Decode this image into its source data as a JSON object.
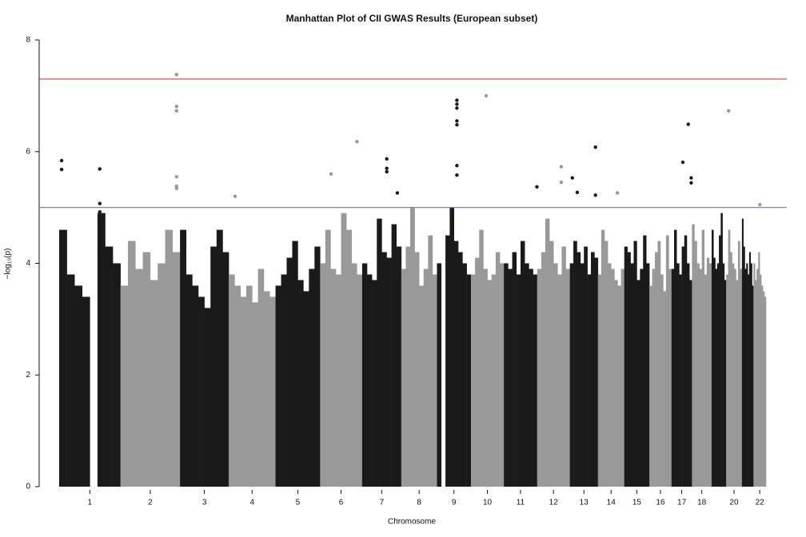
{
  "chart_data": {
    "type": "manhattan",
    "title": "Manhattan Plot of CII GWAS Results (European subset)",
    "x_label": "Chromosome",
    "y_label": "−log₁₀(p)",
    "ylim": [
      0,
      8
    ],
    "yticks": [
      0,
      2,
      4,
      6,
      8
    ],
    "thresholds": [
      {
        "value": 7.3,
        "color": "#e03a3a"
      },
      {
        "value": 5,
        "color": "#7b7fd6"
      }
    ],
    "chromosomes": [
      {
        "label": "1",
        "length": 249,
        "color": "#1a1a1a",
        "profile": [
          4.6,
          3.8,
          3.6,
          3.4,
          null,
          4.9,
          4.3,
          4.0
        ],
        "hits": {
          "x": [
            10,
            10,
            165,
            165,
            165
          ],
          "y": [
            5.84,
            5.68,
            5.69,
            5.07,
            4.92
          ]
        }
      },
      {
        "label": "2",
        "length": 242,
        "color": "#999999",
        "profile": [
          3.6,
          4.4,
          3.9,
          4.2,
          3.7,
          4.0,
          4.6,
          4.2
        ],
        "hits": {
          "x": [
            228,
            228,
            228,
            228,
            228,
            228
          ],
          "y": [
            7.38,
            6.81,
            6.73,
            5.55,
            5.38,
            5.34
          ]
        }
      },
      {
        "label": "3",
        "length": 198,
        "color": "#1a1a1a",
        "profile": [
          4.6,
          3.8,
          3.6,
          3.4,
          3.2,
          4.3,
          4.6,
          4.2
        ],
        "hits": {
          "x": [],
          "y": []
        }
      },
      {
        "label": "4",
        "length": 190,
        "color": "#999999",
        "profile": [
          3.8,
          3.6,
          3.4,
          3.6,
          3.3,
          3.9,
          3.5,
          3.4
        ],
        "hits": {
          "x": [
            26
          ],
          "y": [
            5.2
          ]
        }
      },
      {
        "label": "5",
        "length": 181,
        "color": "#1a1a1a",
        "profile": [
          3.6,
          3.8,
          4.1,
          4.4,
          3.7,
          3.5,
          3.9,
          4.3
        ],
        "hits": {
          "x": [],
          "y": []
        }
      },
      {
        "label": "6",
        "length": 171,
        "color": "#999999",
        "profile": [
          4.0,
          4.6,
          3.9,
          3.8,
          4.9,
          4.6,
          4.0,
          3.8
        ],
        "hits": {
          "x": [
            45,
            150
          ],
          "y": [
            5.6,
            6.18
          ]
        }
      },
      {
        "label": "7",
        "length": 159,
        "color": "#1a1a1a",
        "profile": [
          4.0,
          3.8,
          3.7,
          4.8,
          4.2,
          4.1,
          4.7,
          4.3
        ],
        "hits": {
          "x": [
            100,
            100,
            100,
            143
          ],
          "y": [
            5.87,
            5.7,
            5.64,
            5.26
          ]
        }
      },
      {
        "label": "8",
        "length": 145,
        "color": "#999999",
        "profile": [
          3.9,
          4.3,
          5.0,
          4.2,
          3.6,
          3.9,
          4.5,
          3.8
        ],
        "hits": {
          "x": [],
          "y": []
        }
      },
      {
        "label": "9",
        "length": 138,
        "color": "#1a1a1a",
        "profile": [
          4.0,
          null,
          4.5,
          5.0,
          4.4,
          4.2,
          4.0,
          3.8
        ],
        "hits": {
          "x": [
            81,
            81,
            81,
            81,
            81,
            81,
            81
          ],
          "y": [
            6.92,
            6.85,
            6.78,
            6.55,
            6.48,
            5.75,
            5.58
          ]
        }
      },
      {
        "label": "10",
        "length": 134,
        "color": "#999999",
        "profile": [
          3.8,
          4.1,
          4.6,
          3.9,
          3.7,
          3.8,
          4.2,
          4.0
        ],
        "hits": {
          "x": [
            62
          ],
          "y": [
            7.0
          ]
        }
      },
      {
        "label": "11",
        "length": 135,
        "color": "#1a1a1a",
        "profile": [
          4.0,
          3.9,
          4.2,
          3.8,
          4.4,
          4.0,
          3.9,
          3.8
        ],
        "hits": {
          "x": [
            134
          ],
          "y": [
            5.37
          ]
        }
      },
      {
        "label": "12",
        "length": 133,
        "color": "#999999",
        "profile": [
          3.9,
          4.2,
          4.8,
          4.4,
          4.0,
          3.8,
          4.3,
          3.9
        ],
        "hits": {
          "x": [
            98,
            98
          ],
          "y": [
            5.73,
            5.45
          ]
        }
      },
      {
        "label": "13",
        "length": 114,
        "color": "#1a1a1a",
        "profile": [
          4.0,
          4.4,
          4.2,
          4.0,
          4.3,
          3.8,
          4.2,
          4.1
        ],
        "hits": {
          "x": [
            10,
            30,
            104,
            104
          ],
          "y": [
            5.53,
            5.27,
            6.08,
            5.22
          ]
        }
      },
      {
        "label": "14",
        "length": 107,
        "color": "#999999",
        "profile": [
          3.8,
          4.6,
          4.4,
          4.0,
          3.9,
          3.7,
          3.6,
          3.9
        ],
        "hits": {
          "x": [
            79
          ],
          "y": [
            5.26
          ]
        }
      },
      {
        "label": "15",
        "length": 102,
        "color": "#1a1a1a",
        "profile": [
          4.3,
          4.2,
          4.0,
          4.4,
          3.7,
          3.9,
          4.5,
          4.0
        ],
        "hits": {
          "x": [],
          "y": []
        }
      },
      {
        "label": "16",
        "length": 90,
        "color": "#999999",
        "profile": [
          3.6,
          3.9,
          4.2,
          4.4,
          3.8,
          3.5,
          4.5,
          3.9
        ],
        "hits": {
          "x": [],
          "y": []
        }
      },
      {
        "label": "17",
        "length": 83,
        "color": "#1a1a1a",
        "profile": [
          3.9,
          4.6,
          4.0,
          3.8,
          4.3,
          4.5,
          4.0,
          3.7
        ],
        "hits": {
          "x": [
            46,
            68,
            80,
            80
          ],
          "y": [
            5.81,
            6.49,
            5.53,
            5.44
          ]
        }
      },
      {
        "label": "18",
        "length": 80,
        "color": "#999999",
        "profile": [
          4.7,
          4.4,
          4.0,
          3.9,
          4.6,
          3.8,
          4.1,
          4.0
        ],
        "hits": {
          "x": [],
          "y": []
        }
      },
      {
        "label": null,
        "length": 59,
        "color": "#1a1a1a",
        "profile": [
          4.6,
          4.1,
          3.9,
          4.0,
          4.5,
          4.9,
          4.0,
          3.7
        ],
        "hits": {
          "x": [],
          "y": []
        }
      },
      {
        "label": "20",
        "length": 64,
        "color": "#999999",
        "profile": [
          3.8,
          4.6,
          4.2,
          4.0,
          3.9,
          3.7,
          4.4,
          3.9
        ],
        "hits": {
          "x": [
            10
          ],
          "y": [
            6.73
          ]
        }
      },
      {
        "label": null,
        "length": 47,
        "color": "#1a1a1a",
        "profile": [
          4.8,
          4.3,
          3.9,
          4.0,
          3.8,
          4.2,
          4.0,
          3.6
        ],
        "hits": {
          "x": [],
          "y": []
        }
      },
      {
        "label": "22",
        "length": 51,
        "color": "#999999",
        "profile": [
          4.0,
          3.7,
          3.9,
          4.2,
          3.8,
          3.6,
          3.5,
          3.4
        ],
        "hits": {
          "x": [
            26
          ],
          "y": [
            5.05
          ]
        }
      }
    ]
  }
}
